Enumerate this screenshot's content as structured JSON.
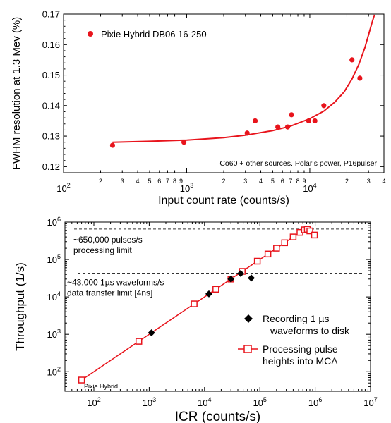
{
  "colors": {
    "series_red": "#e8141c",
    "black": "#000000",
    "dashed": "#333333"
  },
  "chart_data": [
    {
      "type": "scatter",
      "title": "",
      "xlabel": "Input count rate (counts/s)",
      "ylabel": "FWHM resolution at 1.3 Mev (%)",
      "xscale": "log",
      "xlim": [
        100,
        40000
      ],
      "ylim": [
        0.118,
        0.17
      ],
      "x_major_ticks": [
        100,
        1000,
        10000
      ],
      "x_major_labels": [
        "10^2",
        "10^3",
        "10^4"
      ],
      "x_minor_labels": [
        {
          "x": 200,
          "label": "2"
        },
        {
          "x": 300,
          "label": "3"
        },
        {
          "x": 400,
          "label": "4"
        },
        {
          "x": 500,
          "label": "5"
        },
        {
          "x": 600,
          "label": "6"
        },
        {
          "x": 700,
          "label": "7"
        },
        {
          "x": 800,
          "label": "8"
        },
        {
          "x": 900,
          "label": "9"
        },
        {
          "x": 2000,
          "label": "2"
        },
        {
          "x": 3000,
          "label": "3"
        },
        {
          "x": 4000,
          "label": "4"
        },
        {
          "x": 5000,
          "label": "5"
        },
        {
          "x": 6000,
          "label": "6"
        },
        {
          "x": 7000,
          "label": "7"
        },
        {
          "x": 8000,
          "label": "8"
        },
        {
          "x": 9000,
          "label": "9"
        },
        {
          "x": 20000,
          "label": "2"
        },
        {
          "x": 30000,
          "label": "3"
        },
        {
          "x": 40000,
          "label": "4"
        }
      ],
      "y_ticks": [
        0.12,
        0.13,
        0.14,
        0.15,
        0.16,
        0.17
      ],
      "y_tick_labels": [
        "0.12",
        "0.13",
        "0.14",
        "0.15",
        "0.16",
        "0.17"
      ],
      "series": [
        {
          "name": "Pixie Hybrid  DB06 16-250",
          "marker": "circle",
          "x": [
            250,
            950,
            3100,
            3600,
            5500,
            6600,
            7100,
            9800,
            11000,
            13000,
            22000,
            25500
          ],
          "y": [
            0.127,
            0.128,
            0.131,
            0.135,
            0.133,
            0.133,
            0.137,
            0.135,
            0.135,
            0.14,
            0.155,
            0.149
          ]
        },
        {
          "name": "fit",
          "marker": "line",
          "x": [
            250,
            500,
            1000,
            2000,
            3000,
            5000,
            7000,
            10000,
            13000,
            16000,
            19000,
            22000,
            25000,
            28000,
            30000,
            32000,
            33500
          ],
          "y": [
            0.128,
            0.1283,
            0.1287,
            0.1295,
            0.1303,
            0.1318,
            0.1333,
            0.1357,
            0.1382,
            0.1412,
            0.1445,
            0.1487,
            0.1535,
            0.159,
            0.1632,
            0.1672,
            0.1698
          ]
        }
      ],
      "annotations": [
        "Co60 + other sources. Polaris power, P16pulser"
      ],
      "legend_position": "top-left",
      "grid": false
    },
    {
      "type": "scatter",
      "title": "",
      "xlabel": "ICR (counts/s)",
      "ylabel": "Throughput (1/s)",
      "xscale": "log",
      "yscale": "log",
      "xlim": [
        30,
        10000000
      ],
      "ylim": [
        30,
        1000000
      ],
      "x_major_ticks": [
        100,
        1000,
        10000,
        100000,
        1000000,
        10000000
      ],
      "x_major_labels": [
        "10^2",
        "10^3",
        "10^4",
        "10^5",
        "10^6",
        "10^7"
      ],
      "y_major_ticks": [
        100,
        1000,
        10000,
        100000,
        1000000
      ],
      "y_major_labels": [
        "10^2",
        "10^3",
        "10^4",
        "10^5",
        "10^6"
      ],
      "series": [
        {
          "name": "Recording 1 µs waveforms to disk",
          "marker": "diamond",
          "x": [
            1100,
            12000,
            30000,
            45000,
            70000
          ],
          "y": [
            1100,
            12000,
            30000,
            42000,
            32000
          ]
        },
        {
          "name": "Processing pulse heights into MCA",
          "marker": "open-square-line",
          "x": [
            60,
            650,
            6500,
            16000,
            30000,
            48000,
            90000,
            140000,
            200000,
            280000,
            400000,
            530000,
            640000,
            720000,
            800000,
            970000
          ],
          "y": [
            60,
            650,
            6500,
            16000,
            30000,
            48000,
            90000,
            140000,
            200000,
            280000,
            400000,
            530000,
            620000,
            640000,
            580000,
            450000
          ]
        }
      ],
      "reference_lines": [
        {
          "y": 650000,
          "label_lines": [
            "~650,000 pulses/s",
            "processing limit"
          ]
        },
        {
          "y": 43000,
          "label_lines": [
            "~43,000 1µs waveforms/s",
            "data transfer limit [4ns]"
          ]
        }
      ],
      "annotations": [
        "Pixie Hybrid"
      ],
      "legend_position": "bottom-right",
      "grid": false
    }
  ]
}
